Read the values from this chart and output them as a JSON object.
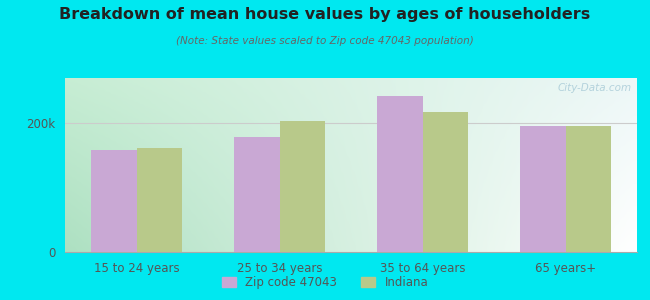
{
  "title": "Breakdown of mean house values by ages of householders",
  "subtitle": "(Note: State values scaled to Zip code 47043 population)",
  "categories": [
    "15 to 24 years",
    "25 to 34 years",
    "35 to 64 years",
    "65 years+"
  ],
  "zip_values": [
    158000,
    178000,
    242000,
    196000
  ],
  "state_values": [
    162000,
    203000,
    218000,
    196000
  ],
  "zip_color": "#c9a8d4",
  "state_color": "#b8c98a",
  "background_outer": "#00e8f0",
  "background_corner_topleft": "#c8e8d0",
  "background_corner_topright": "#edf8f8",
  "background_corner_bottomleft": "#b0ddc0",
  "background_corner_bottomright": "#ffffff",
  "ylim": [
    0,
    270000
  ],
  "ytick_vals": [
    0,
    200000
  ],
  "ytick_labels": [
    "0",
    "200k"
  ],
  "legend_zip": "Zip code 47043",
  "legend_state": "Indiana",
  "bar_width": 0.32,
  "watermark": "City-Data.com",
  "watermark_color": "#aaccd8"
}
